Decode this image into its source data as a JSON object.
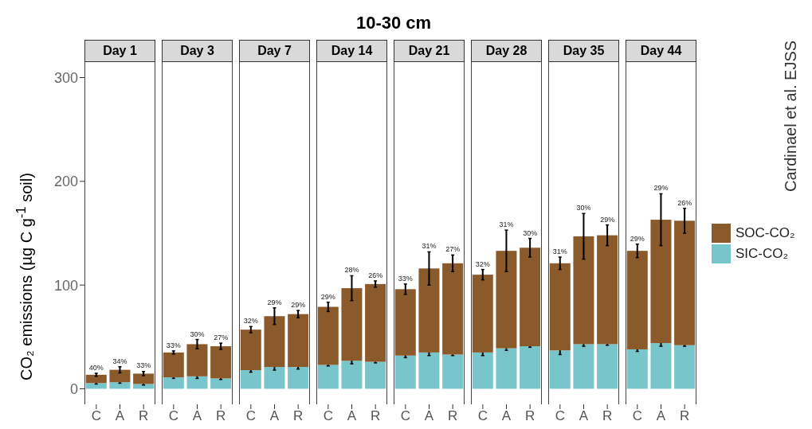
{
  "chart_data": [
    {
      "type": "bar",
      "title": "Day 1",
      "ylabel": "CO₂ emissions (µg C g$^{-1}$ soil)",
      "legend": "right",
      "categories": [
        "C",
        "A",
        "R"
      ],
      "stacked": true,
      "ylim": [
        -15,
        315
      ],
      "yticks": [
        0,
        100,
        200,
        300
      ],
      "annotations": [
        "10-30 cm",
        "Cardinael et al. EJSS",
        {
          "text": "40%",
          "x": "C",
          "y": 15
        },
        {
          "text": "34%",
          "x": "A",
          "y": 21
        },
        {
          "text": "33%",
          "x": "R",
          "y": 17
        }
      ],
      "series": [
        {
          "name": "SIC-CO₂",
          "color": "#79c5cc",
          "values": [
            5.5,
            6.3,
            4.6
          ],
          "errors": [
            1,
            1,
            1
          ]
        },
        {
          "name": "SOC-CO₂",
          "color": "#8b5a2b",
          "values": [
            8,
            12,
            10
          ],
          "errors": [
            1.5,
            3,
            2
          ]
        }
      ]
    },
    {
      "type": "bar",
      "title": "Day 3",
      "categories": [
        "C",
        "A",
        "R"
      ],
      "stacked": true,
      "ylim": [
        -15,
        315
      ],
      "tick_labels": "x",
      "annotations": [
        {
          "text": "33%",
          "x": "C",
          "y": 36.5
        },
        {
          "text": "30%",
          "x": "A",
          "y": 47.5
        },
        {
          "text": "27%",
          "x": "R",
          "y": 44
        }
      ],
      "series": [
        {
          "color": "#79c5cc",
          "values": [
            11,
            12,
            10
          ],
          "errors": [
            1,
            2,
            1
          ]
        },
        {
          "color": "#8b5a2b",
          "values": [
            24,
            31,
            31
          ],
          "errors": [
            1.5,
            4.5,
            3
          ]
        }
      ]
    },
    {
      "type": "bar",
      "title": "Day 7",
      "categories": [
        "C",
        "A",
        "R"
      ],
      "stacked": true,
      "ylim": [
        -15,
        315
      ],
      "tick_labels": "x",
      "annotations": [
        {
          "text": "32%",
          "x": "C",
          "y": 60
        },
        {
          "text": "29%",
          "x": "A",
          "y": 78
        },
        {
          "text": "29%",
          "x": "R",
          "y": 75.5
        }
      ],
      "series": [
        {
          "color": "#79c5cc",
          "values": [
            18,
            21,
            21
          ],
          "errors": [
            2,
            3,
            2
          ]
        },
        {
          "color": "#8b5a2b",
          "values": [
            39,
            49,
            51
          ],
          "errors": [
            3,
            8,
            3.5
          ]
        }
      ]
    },
    {
      "type": "bar",
      "title": "Day 14",
      "categories": [
        "C",
        "A",
        "R"
      ],
      "stacked": true,
      "ylim": [
        -15,
        315
      ],
      "tick_labels": "x",
      "annotations": [
        {
          "text": "29%",
          "x": "C",
          "y": 83.5
        },
        {
          "text": "28%",
          "x": "A",
          "y": 109
        },
        {
          "text": "26%",
          "x": "R",
          "y": 104
        }
      ],
      "series": [
        {
          "color": "#79c5cc",
          "values": [
            23,
            27,
            26
          ],
          "errors": [
            1,
            3,
            1
          ]
        },
        {
          "color": "#8b5a2b",
          "values": [
            56,
            70,
            75
          ],
          "errors": [
            4.5,
            12,
            3
          ]
        }
      ]
    },
    {
      "type": "bar",
      "title": "Day 21",
      "categories": [
        "C",
        "A",
        "R"
      ],
      "stacked": true,
      "ylim": [
        -15,
        315
      ],
      "tick_labels": "x",
      "annotations": [
        {
          "text": "33%",
          "x": "C",
          "y": 101
        },
        {
          "text": "31%",
          "x": "A",
          "y": 132
        },
        {
          "text": "27%",
          "x": "R",
          "y": 129
        }
      ],
      "series": [
        {
          "color": "#79c5cc",
          "values": [
            32,
            35,
            33
          ],
          "errors": [
            2,
            3,
            1
          ]
        },
        {
          "color": "#8b5a2b",
          "values": [
            64,
            81,
            88
          ],
          "errors": [
            5,
            16,
            8
          ]
        }
      ]
    },
    {
      "type": "bar",
      "title": "Day 28",
      "categories": [
        "C",
        "A",
        "R"
      ],
      "stacked": true,
      "ylim": [
        -15,
        315
      ],
      "tick_labels": "x",
      "annotations": [
        {
          "text": "32%",
          "x": "C",
          "y": 115
        },
        {
          "text": "31%",
          "x": "A",
          "y": 153
        },
        {
          "text": "30%",
          "x": "R",
          "y": 145
        }
      ],
      "series": [
        {
          "color": "#79c5cc",
          "values": [
            35,
            39,
            41
          ],
          "errors": [
            3,
            2,
            1
          ]
        },
        {
          "color": "#8b5a2b",
          "values": [
            75,
            94,
            95
          ],
          "errors": [
            5,
            20,
            9
          ]
        }
      ]
    },
    {
      "type": "bar",
      "title": "Day 35",
      "categories": [
        "C",
        "A",
        "R"
      ],
      "stacked": true,
      "ylim": [
        -15,
        315
      ],
      "tick_labels": "x",
      "annotations": [
        {
          "text": "31%",
          "x": "C",
          "y": 127
        },
        {
          "text": "30%",
          "x": "A",
          "y": 169
        },
        {
          "text": "29%",
          "x": "R",
          "y": 158
        }
      ],
      "series": [
        {
          "color": "#79c5cc",
          "values": [
            37,
            43,
            43
          ],
          "errors": [
            4,
            2,
            1
          ]
        },
        {
          "color": "#8b5a2b",
          "values": [
            84,
            104,
            105
          ],
          "errors": [
            6,
            22,
            10
          ]
        }
      ]
    },
    {
      "type": "bar",
      "title": "Day 44",
      "categories": [
        "C",
        "A",
        "R"
      ],
      "stacked": true,
      "ylim": [
        -15,
        315
      ],
      "tick_labels": "x",
      "annotations": [
        {
          "text": "29%",
          "x": "C",
          "y": 139.5
        },
        {
          "text": "29%",
          "x": "A",
          "y": 188
        },
        {
          "text": "26%",
          "x": "R",
          "y": 174
        }
      ],
      "series": [
        {
          "color": "#79c5cc",
          "values": [
            38,
            44,
            42
          ],
          "errors": [
            2,
            3,
            1
          ]
        },
        {
          "color": "#8b5a2b",
          "values": [
            95,
            119,
            120
          ],
          "errors": [
            6.5,
            25,
            12
          ]
        }
      ]
    }
  ]
}
